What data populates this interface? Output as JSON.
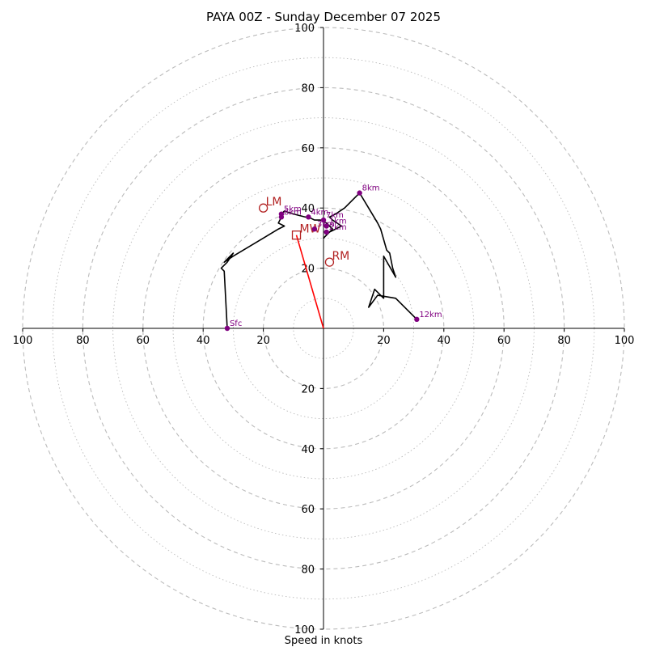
{
  "chart_data": {
    "type": "line",
    "title": "PAYA 00Z - Sunday December 07 2025",
    "xlabel": "Speed in knots",
    "xlim": [
      -100,
      100
    ],
    "ylim": [
      -100,
      100
    ],
    "grid": true,
    "ring_labels_x": [
      "100",
      "80",
      "60",
      "40",
      "20",
      "20",
      "40",
      "60",
      "80",
      "100"
    ],
    "ring_labels_x_values": [
      -100,
      -80,
      -60,
      -40,
      -20,
      20,
      40,
      60,
      80,
      100
    ],
    "ring_labels_y": [
      "100",
      "80",
      "60",
      "40",
      "20",
      "20",
      "40",
      "60",
      "80",
      "100"
    ],
    "ring_labels_y_values": [
      100,
      80,
      60,
      40,
      20,
      -20,
      -40,
      -60,
      -80,
      -100
    ],
    "hodograph": {
      "color": "#000000",
      "points": [
        [
          -32,
          0
        ],
        [
          -33,
          19
        ],
        [
          -34,
          20
        ],
        [
          -32,
          22
        ],
        [
          -30,
          25
        ],
        [
          -33,
          22
        ],
        [
          -30,
          24
        ],
        [
          -25,
          27
        ],
        [
          -20,
          30
        ],
        [
          -15,
          33
        ],
        [
          -13,
          34
        ],
        [
          -15,
          35
        ],
        [
          -14,
          37
        ],
        [
          -14,
          38
        ],
        [
          -13,
          39
        ],
        [
          -10,
          38
        ],
        [
          -6,
          37
        ],
        [
          -5,
          37
        ],
        [
          -3,
          36
        ],
        [
          -1,
          36
        ],
        [
          1,
          35
        ],
        [
          2,
          34
        ],
        [
          3,
          33
        ],
        [
          1,
          31
        ],
        [
          0,
          30
        ],
        [
          2,
          32
        ],
        [
          4,
          33
        ],
        [
          6,
          34
        ],
        [
          3,
          36
        ],
        [
          2,
          37
        ],
        [
          4,
          38
        ],
        [
          7,
          40
        ],
        [
          12,
          45
        ],
        [
          15,
          40
        ],
        [
          18,
          35
        ],
        [
          19,
          33
        ],
        [
          21,
          26
        ],
        [
          22,
          25
        ],
        [
          23,
          20
        ],
        [
          24,
          17
        ],
        [
          20,
          24
        ],
        [
          20,
          10
        ],
        [
          17,
          13
        ],
        [
          15,
          7
        ],
        [
          18,
          11
        ],
        [
          24,
          10
        ],
        [
          28,
          6
        ],
        [
          31,
          3
        ]
      ]
    },
    "height_markers": [
      {
        "label": "Sfc",
        "x": -32,
        "y": 0
      },
      {
        "label": "5km",
        "x": -14,
        "y": 38
      },
      {
        "label": "6km",
        "x": -14,
        "y": 37
      },
      {
        "label": "4km",
        "x": -5,
        "y": 37
      },
      {
        "label": "7km",
        "x": 0,
        "y": 36
      },
      {
        "label": "1km",
        "x": 1,
        "y": 34
      },
      {
        "label": "3km",
        "x": -3,
        "y": 33
      },
      {
        "label": "2km",
        "x": 1,
        "y": 32
      },
      {
        "label": "8km",
        "x": 12,
        "y": 45
      },
      {
        "label": "12km",
        "x": 31,
        "y": 3
      }
    ],
    "storm_motion": {
      "mean_wind": {
        "label": "MW",
        "x": -9,
        "y": 31
      },
      "left_mover": {
        "label": "LM",
        "x": -20,
        "y": 40
      },
      "right_mover": {
        "label": "RM",
        "x": 2,
        "y": 22
      },
      "vector_color": "#ff0000"
    },
    "colors": {
      "marker": "#800080",
      "storm": "#b22222",
      "grid": "#bbbbbb",
      "axis": "#000000"
    }
  }
}
